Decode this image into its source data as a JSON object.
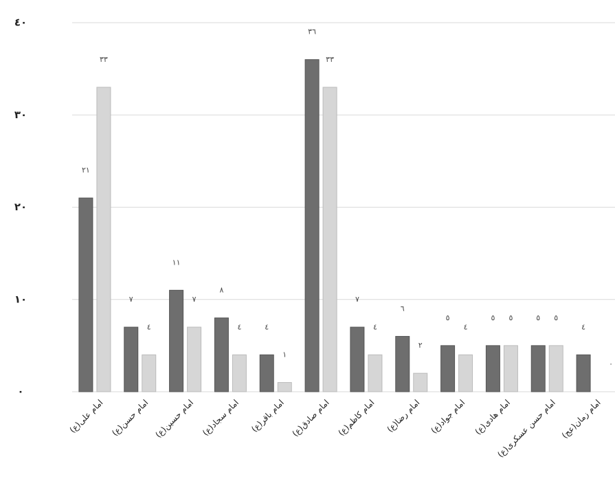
{
  "chart_data": {
    "type": "bar",
    "categories": [
      "امام علی(ع)",
      "امام حسن(ع)",
      "امام حسین(ع)",
      "امام سجاد(ع)",
      "امام باقر(ع)",
      "امام صادق(ع)",
      "امام کاظم(ع)",
      "امام رضا(ع)",
      "امام جواد(ع)",
      "امام هادی(ع)",
      "امام حسن عسکری(ع)",
      "امام زمان(عج)"
    ],
    "series": [
      {
        "color": "#6e6e6e",
        "values": [
          21,
          7,
          11,
          8,
          4,
          36,
          7,
          6,
          5,
          5,
          5,
          4
        ],
        "value_labels": [
          "٢١",
          "٧",
          "١١",
          "٨",
          "٤",
          "٣٦",
          "٧",
          "٦",
          "٥",
          "٥",
          "٥",
          "٤"
        ]
      },
      {
        "color": "#d6d6d6",
        "values": [
          33,
          4,
          7,
          4,
          1,
          33,
          4,
          2,
          4,
          5,
          5,
          0
        ],
        "value_labels": [
          "٣٣",
          "٤",
          "٧",
          "٤",
          "١",
          "٣٣",
          "٤",
          "٢",
          "٤",
          "٥",
          "٥",
          "٠"
        ]
      }
    ],
    "ylim": [
      0,
      40
    ],
    "yticks": [
      {
        "value": 0,
        "label": "٠"
      },
      {
        "value": 10,
        "label": "١٠"
      },
      {
        "value": 20,
        "label": "٢٠"
      },
      {
        "value": 30,
        "label": "٣٠"
      },
      {
        "value": 40,
        "label": "٤٠"
      }
    ],
    "grid": true
  }
}
